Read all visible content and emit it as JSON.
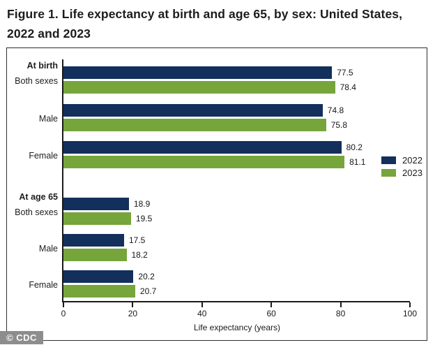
{
  "header": {
    "title": "Figure 1. Life expectancy at birth and age 65, by sex: United States, 2022 and 2023"
  },
  "footer": {
    "credit": "© CDC"
  },
  "colors": {
    "series_2022": "#132f5b",
    "series_2023": "#76a53c",
    "axis": "#1a1a1a",
    "credit_badge_bg": "#8d8d8d"
  },
  "chart_data": {
    "type": "bar",
    "orientation": "horizontal",
    "title": "Figure 1. Life expectancy at birth and age 65, by sex: United States, 2022 and 2023",
    "xlabel": "Life expectancy (years)",
    "xlim": [
      0,
      100
    ],
    "xticks": [
      0,
      20,
      40,
      60,
      80,
      100
    ],
    "grid": false,
    "legend_position": "right",
    "value_labels": true,
    "series": [
      {
        "name": "2022",
        "color": "#132f5b"
      },
      {
        "name": "2023",
        "color": "#76a53c"
      }
    ],
    "sections": [
      {
        "header": "At birth",
        "rows": [
          {
            "label": "Both sexes",
            "values": [
              77.5,
              78.4
            ]
          },
          {
            "label": "Male",
            "values": [
              74.8,
              75.8
            ]
          },
          {
            "label": "Female",
            "values": [
              80.2,
              81.1
            ]
          }
        ]
      },
      {
        "header": "At age 65",
        "rows": [
          {
            "label": "Both sexes",
            "values": [
              18.9,
              19.5
            ]
          },
          {
            "label": "Male",
            "values": [
              17.5,
              18.2
            ]
          },
          {
            "label": "Female",
            "values": [
              20.2,
              20.7
            ]
          }
        ]
      }
    ]
  }
}
